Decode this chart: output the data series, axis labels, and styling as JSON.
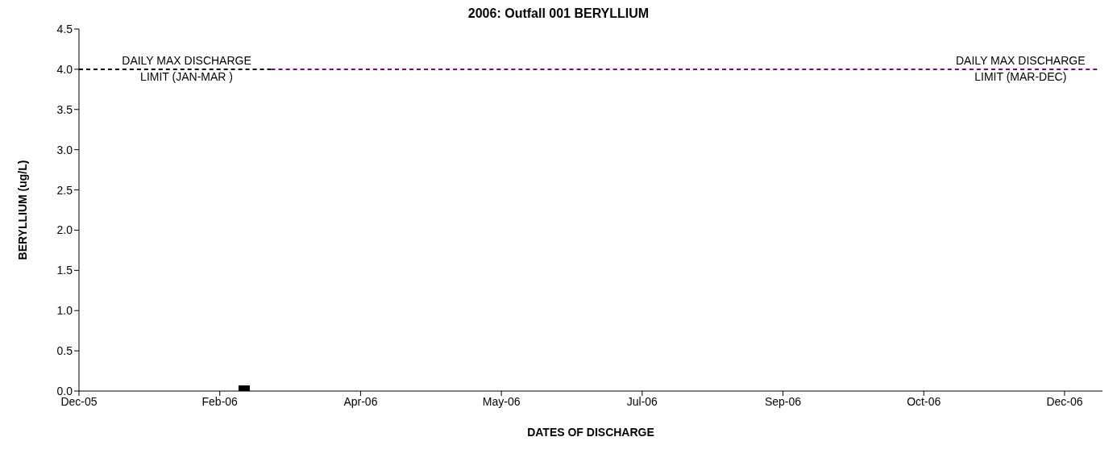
{
  "chart_data": {
    "type": "scatter",
    "title": "2006: Outfall 001 BERYLLIUM",
    "xlabel": "DATES OF DISCHARGE",
    "ylabel": "BERYLLIUM (ug/L)",
    "xlim": [
      "2005-12-20",
      "2007-01-02"
    ],
    "xticks": [
      {
        "value": "2005-12-20",
        "label": "Dec-05"
      },
      {
        "value": "2006-02-10",
        "label": "Feb-06"
      },
      {
        "value": "2006-04-03",
        "label": "Apr-06"
      },
      {
        "value": "2006-05-25",
        "label": "May-06"
      },
      {
        "value": "2006-07-16",
        "label": "Jul-06"
      },
      {
        "value": "2006-09-06",
        "label": "Sep-06"
      },
      {
        "value": "2006-10-28",
        "label": "Oct-06"
      },
      {
        "value": "2006-12-19",
        "label": "Dec-06"
      }
    ],
    "ylim": [
      0,
      4.5
    ],
    "yticks": [
      {
        "value": 0,
        "label": "0.0"
      },
      {
        "value": 0.5,
        "label": "0.5"
      },
      {
        "value": 1,
        "label": "1.0"
      },
      {
        "value": 1.5,
        "label": "1.5"
      },
      {
        "value": 2,
        "label": "2.0"
      },
      {
        "value": 2.5,
        "label": "2.5"
      },
      {
        "value": 3,
        "label": "3.0"
      },
      {
        "value": 3.5,
        "label": "3.5"
      },
      {
        "value": 4,
        "label": "4.0"
      },
      {
        "value": 4.5,
        "label": "4.5"
      }
    ],
    "grid": false,
    "legend": false,
    "series": [
      {
        "color": "#000000",
        "marker": "square",
        "x": [
          "2006-02-19"
        ],
        "values": [
          0
        ]
      },
      {
        "type": "line",
        "name": "DAILY MAX DISCHARGE LIMIT (JAN-MAR )",
        "color": "#000000",
        "line_style": "dashed",
        "marker": "none",
        "x": [
          "2005-12-20",
          "2006-03-01"
        ],
        "values": [
          4,
          4
        ]
      },
      {
        "type": "line",
        "name": "DAILY MAX DISCHARGE LIMIT (MAR-DEC)",
        "color": "#800080",
        "line_style": "dashed",
        "marker": "none",
        "x": [
          "2006-03-01",
          "2006-12-31"
        ],
        "values": [
          4,
          4
        ]
      }
    ]
  }
}
